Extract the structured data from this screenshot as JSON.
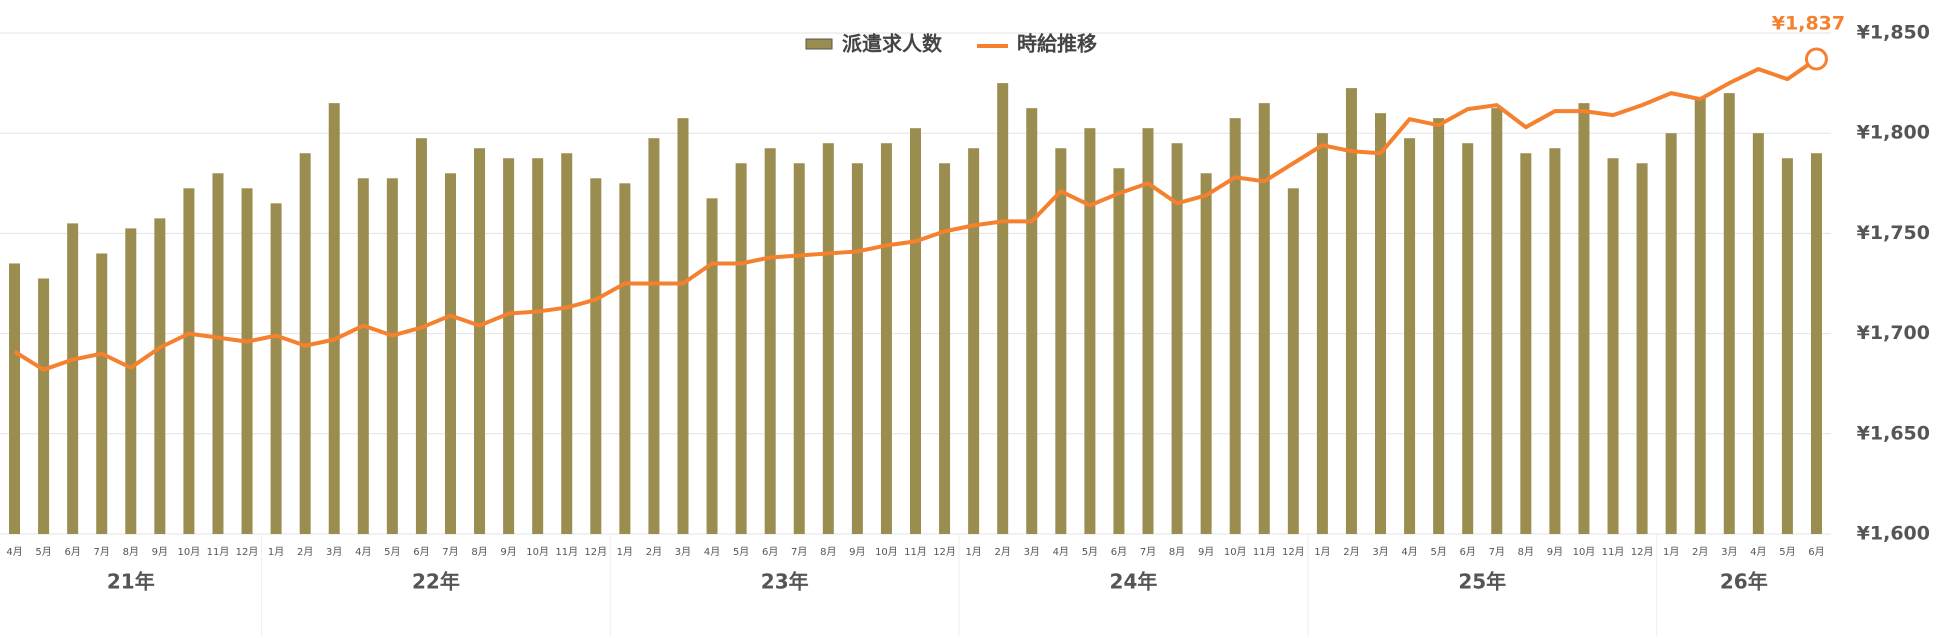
{
  "chart_data": {
    "type": "bar-line",
    "categories": [
      "4月",
      "5月",
      "6月",
      "7月",
      "8月",
      "9月",
      "10月",
      "11月",
      "12月",
      "1月",
      "2月",
      "3月",
      "4月",
      "5月",
      "6月",
      "7月",
      "8月",
      "9月",
      "10月",
      "11月",
      "12月",
      "1月",
      "2月",
      "3月",
      "4月",
      "5月",
      "6月",
      "7月",
      "8月",
      "9月",
      "10月",
      "11月",
      "12月",
      "1月",
      "2月",
      "3月",
      "4月",
      "5月",
      "6月",
      "7月",
      "8月",
      "9月",
      "10月",
      "11月",
      "12月",
      "1月",
      "2月",
      "3月",
      "4月",
      "5月",
      "6月",
      "7月",
      "8月",
      "9月",
      "10月",
      "11月",
      "12月",
      "1月",
      "2月",
      "3月",
      "4月",
      "5月",
      "6月"
    ],
    "year_labels": [
      "21年",
      "22年",
      "23年",
      "24年",
      "25年",
      "26年"
    ],
    "series": [
      {
        "name": "派遣求人数",
        "type": "bar",
        "axis": "y2",
        "color": "#9b8c4f",
        "values": [
          54,
          51,
          62,
          56,
          61,
          63,
          69,
          72,
          69,
          66,
          76,
          86,
          71,
          71,
          79,
          72,
          77,
          75,
          75,
          76,
          71,
          70,
          79,
          83,
          67,
          74,
          77,
          74,
          78,
          74,
          78,
          81,
          74,
          77,
          90,
          85,
          77,
          81,
          73,
          81,
          78,
          72,
          83,
          86,
          69,
          80,
          89,
          84,
          79,
          83,
          78,
          85,
          76,
          77,
          86,
          75,
          74,
          80,
          87,
          88,
          80,
          75,
          76
        ]
      },
      {
        "name": "時給推移",
        "type": "line",
        "color": "#f5812f",
        "values": [
          1691,
          1682,
          1687,
          1690,
          1683,
          1693,
          1700,
          1698,
          1696,
          1699,
          1694,
          1697,
          1704,
          1699,
          1703,
          1709,
          1704,
          1710,
          1711,
          1713,
          1717,
          1725,
          1725,
          1725,
          1735,
          1735,
          1738,
          1739,
          1740,
          1741,
          1744,
          1746,
          1751,
          1754,
          1756,
          1756,
          1771,
          1764,
          1770,
          1775,
          1765,
          1769,
          1778,
          1776,
          1785,
          1794,
          1791,
          1790,
          1807,
          1804,
          1812,
          1814,
          1803,
          1811,
          1811,
          1809,
          1814,
          1820,
          1817,
          1825,
          1832,
          1827,
          1837
        ],
        "value_labels": [
          null,
          null,
          null,
          null,
          null,
          null,
          null,
          null,
          null,
          null,
          null,
          null,
          null,
          null,
          null,
          null,
          null,
          null,
          null,
          null,
          null,
          null,
          null,
          null,
          null,
          null,
          null,
          null,
          null,
          null,
          null,
          null,
          null,
          null,
          null,
          null,
          null,
          null,
          null,
          null,
          null,
          null,
          null,
          null,
          null,
          null,
          null,
          null,
          null,
          null,
          null,
          null,
          null,
          null,
          null,
          null,
          null,
          null,
          null,
          null,
          null,
          null,
          "¥1,837"
        ]
      }
    ],
    "ylim": [
      1600,
      1850
    ],
    "yticks": [
      {
        "value": 1600,
        "label": "¥1,600"
      },
      {
        "value": 1650,
        "label": "¥1,650"
      },
      {
        "value": 1700,
        "label": "¥1,700"
      },
      {
        "value": 1750,
        "label": "¥1,750"
      },
      {
        "value": 1800,
        "label": "¥1,800"
      },
      {
        "value": 1850,
        "label": "¥1,850"
      }
    ],
    "y2lim": [
      0,
      100
    ],
    "grid": true
  }
}
